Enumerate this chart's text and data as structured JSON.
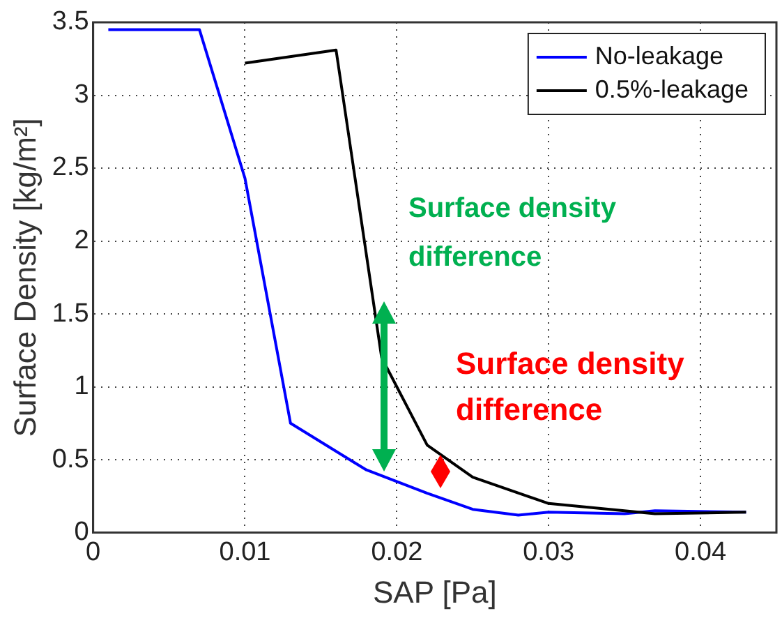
{
  "chart_data": {
    "type": "line",
    "xlabel": "SAP [Pa]",
    "ylabel": "Surface Density [kg/m²]",
    "xlim": [
      0,
      0.045
    ],
    "xticks": [
      0,
      0.01,
      0.02,
      0.03,
      0.04
    ],
    "ylim": [
      0,
      3.5
    ],
    "yticks": [
      0,
      0.5,
      1,
      1.5,
      2,
      2.5,
      3,
      3.5
    ],
    "grid": true,
    "legend": "top right",
    "marker": "none",
    "line_style": "solid",
    "series": [
      {
        "name": "No-leakage",
        "color": "#0000ff",
        "x": [
          0.001,
          0.007,
          0.01,
          0.013,
          0.018,
          0.022,
          0.025,
          0.028,
          0.03,
          0.035,
          0.037,
          0.043
        ],
        "values": [
          3.45,
          3.45,
          2.43,
          0.75,
          0.43,
          0.27,
          0.16,
          0.12,
          0.14,
          0.13,
          0.15,
          0.14
        ]
      },
      {
        "name": "0.5%-leakage",
        "color": "#000000",
        "x": [
          0.01,
          0.016,
          0.019,
          0.022,
          0.025,
          0.03,
          0.037,
          0.043
        ],
        "values": [
          3.22,
          3.31,
          1.2,
          0.6,
          0.38,
          0.2,
          0.13,
          0.14
        ]
      }
    ],
    "annotations": [
      "Surface density difference",
      "Surface density difference"
    ]
  }
}
